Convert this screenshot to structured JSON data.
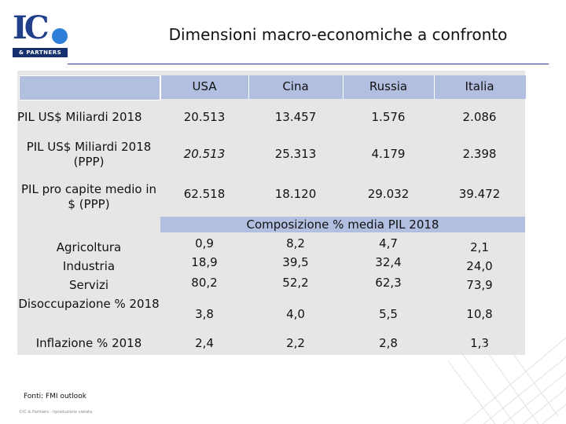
{
  "logo": {
    "text": "IC",
    "tagline": "& PARTNERS"
  },
  "title": "Dimensioni macro-economiche a confronto",
  "columns": [
    "USA",
    "Cina",
    "Russia",
    "Italia"
  ],
  "rows": [
    {
      "label": "PIL US$ Miliardi 2018",
      "values": [
        "20.513",
        "13.457",
        "1.576",
        "2.086"
      ]
    },
    {
      "label": "PIL US$ Miliardi 2018 (PPP)",
      "values": [
        "20.513",
        "25.313",
        "4.179",
        "2.398"
      ]
    },
    {
      "label": "PIL pro capite medio in $ (PPP)",
      "values": [
        "62.518",
        "18.120",
        "29.032",
        "39.472"
      ]
    }
  ],
  "composition": {
    "title": "Composizione % media PIL 2018",
    "rows": [
      {
        "label": "Agricoltura",
        "values": [
          "0,9",
          "8,2",
          "4,7",
          "2,1"
        ]
      },
      {
        "label": "Industria",
        "values": [
          "18,9",
          "39,5",
          "32,4",
          "24,0"
        ]
      },
      {
        "label": "Servizi",
        "values": [
          "80,2",
          "52,2",
          "62,3",
          "73,9"
        ]
      }
    ]
  },
  "extra_rows": [
    {
      "label": "Disoccupazione % 2018",
      "values": [
        "3,8",
        "4,0",
        "5,5",
        "10,8"
      ]
    },
    {
      "label": "Inflazione % 2018",
      "values": [
        "2,4",
        "2,2",
        "2,8",
        "1,3"
      ]
    }
  ],
  "source": "Fonti: FMI outlook",
  "copyright": "©IC & Partners - riproduzione vietata"
}
